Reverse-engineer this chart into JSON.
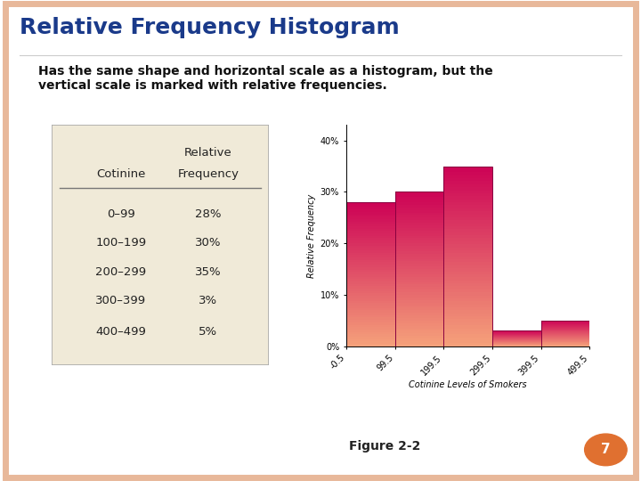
{
  "title": "Relative Frequency Histogram",
  "title_color": "#1a3a8a",
  "title_fontsize": 18,
  "subtitle": "Has the same shape and horizontal scale as a histogram, but the\nvertical scale is marked with relative frequencies.",
  "subtitle_fontsize": 10,
  "bg_color": "#ffffff",
  "slide_border_color": "#e8b89a",
  "table_rows": [
    [
      "0–99",
      "28%"
    ],
    [
      "100–199",
      "30%"
    ],
    [
      "200–299",
      "35%"
    ],
    [
      "300–399",
      "3%"
    ],
    [
      "400–499",
      "5%"
    ]
  ],
  "table_bg": "#f0ead8",
  "bar_values": [
    28,
    30,
    35,
    3,
    5
  ],
  "bar_edges": [
    -0.5,
    99.5,
    199.5,
    299.5,
    399.5,
    499.5
  ],
  "bar_color_top": "#cc0055",
  "bar_color_bottom": "#f5a07a",
  "hist_ylabel": "Relative Frequency",
  "hist_xlabel": "Cotinine Levels of Smokers",
  "hist_yticks": [
    0,
    10,
    20,
    30,
    40
  ],
  "hist_ytick_labels": [
    "0%",
    "10%",
    "20%",
    "30%",
    "40%"
  ],
  "hist_xtick_labels": [
    "-0.5",
    "99.5",
    "199.5",
    "299.5",
    "399.5",
    "499.5"
  ],
  "figure2_label": "Figure 2-2",
  "page_number": "7",
  "page_num_color": "#e07030"
}
